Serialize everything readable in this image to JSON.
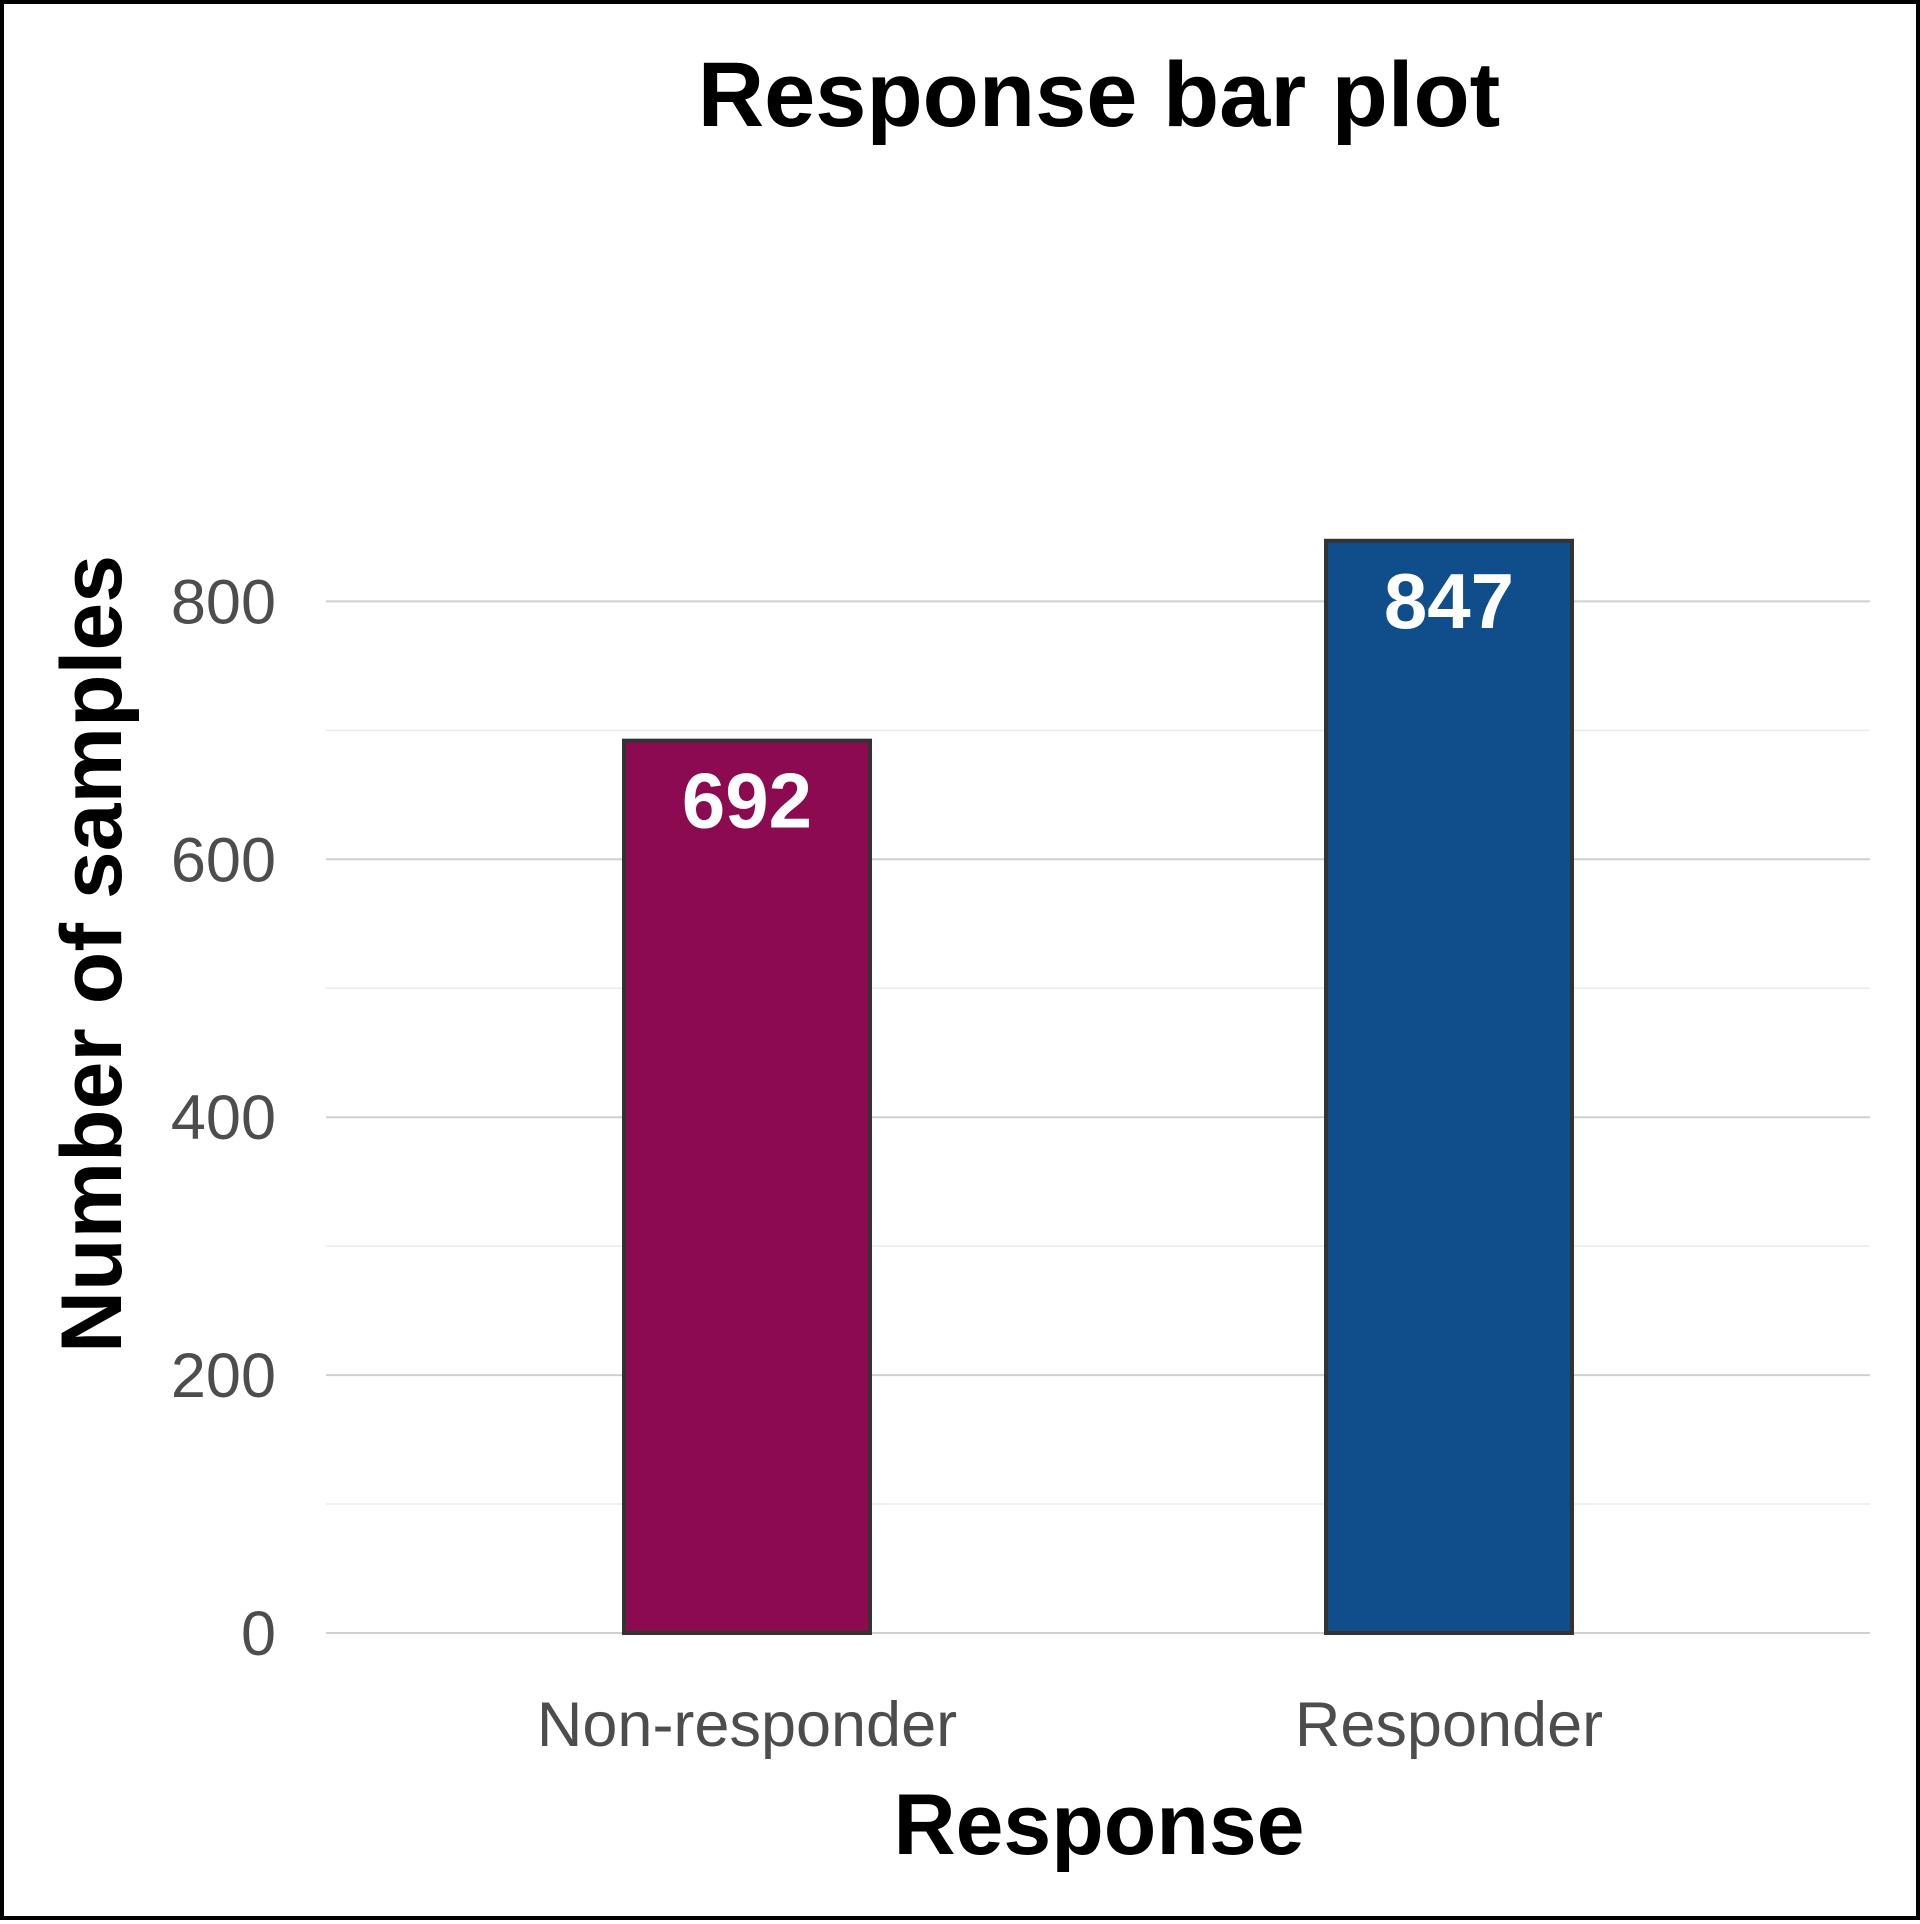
{
  "chart_data": {
    "type": "bar",
    "title": "Response bar plot",
    "xlabel": "Response",
    "ylabel": "Number of samples",
    "categories": [
      "Non-responder",
      "Responder"
    ],
    "values": [
      692,
      847
    ],
    "data_labels": [
      "692",
      "847"
    ],
    "colors": [
      "#8b0a50",
      "#104e8b"
    ],
    "bar_border_color": "#333333",
    "ylim": [
      0,
      880
    ],
    "yticks": [
      0,
      200,
      400,
      600,
      800
    ],
    "ytick_labels": [
      "0",
      "200",
      "400",
      "600",
      "800"
    ],
    "minor_yticks": [
      100,
      300,
      500,
      700
    ],
    "grid": true,
    "legend": "none"
  }
}
